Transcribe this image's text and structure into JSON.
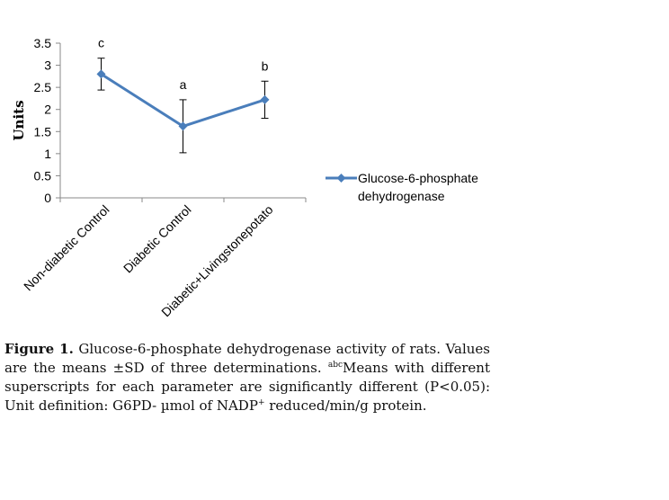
{
  "chart_data": {
    "type": "line",
    "categories": [
      "Non-diabetic Control",
      "Diabetic Control",
      "Diabetic+Livingstonepotato"
    ],
    "series": [
      {
        "name": "Glucose-6-phosphate dehydrogenase",
        "values": [
          2.8,
          1.62,
          2.22
        ],
        "error": [
          0.36,
          0.6,
          0.42
        ],
        "labels": [
          "c",
          "a",
          "b"
        ],
        "color": "#4a7ebb"
      }
    ],
    "ylabel": "Units",
    "xlabel": "",
    "ylim": [
      0,
      3.5
    ],
    "yticks": [
      "0",
      "0.5",
      "1",
      "1.5",
      "2",
      "2.5",
      "3",
      "3.5"
    ],
    "grid": false,
    "legend": "right"
  },
  "legend": {
    "line1": "Glucose-6-phosphate",
    "line2": "dehydrogenase"
  },
  "caption": {
    "label": "Figure 1.",
    "part1": " Glucose-6-phosphate dehydrogenase activity of rats. Values are the means ±SD of three determinations. ",
    "superscript": "abc",
    "part2": "Means with different superscripts for each parameter are significantly different (P<0.05): Unit definition: G6PD- µmol of NADP",
    "superscript2": "+",
    "part3": " reduced/min/g protein."
  }
}
